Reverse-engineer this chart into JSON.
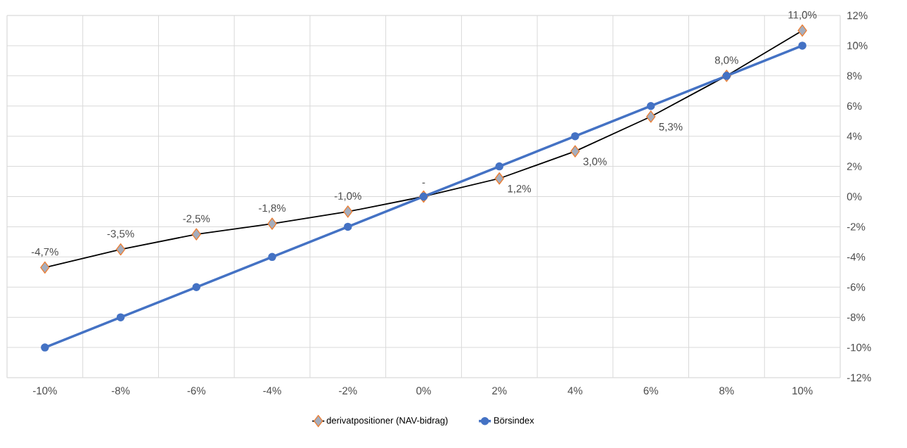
{
  "chart_data": {
    "type": "line",
    "categories": [
      "-10%",
      "-8%",
      "-6%",
      "-4%",
      "-2%",
      "0%",
      "2%",
      "4%",
      "6%",
      "8%",
      "10%"
    ],
    "series": [
      {
        "name": "derivatpositioner (NAV-bidrag)",
        "color": "#000000",
        "marker": "diamond",
        "values": [
          -4.7,
          -3.5,
          -2.5,
          -1.8,
          -1.0,
          0,
          1.2,
          3.0,
          5.3,
          8.0,
          11.0
        ],
        "value_labels": [
          "-4,7%",
          "-3,5%",
          "-2,5%",
          "-1,8%",
          "-1,0%",
          "-",
          "1,2%",
          "3,0%",
          "5,3%",
          "8,0%",
          "11,0%"
        ]
      },
      {
        "name": "Börsindex",
        "color": "#4472c4",
        "marker": "circle",
        "values": [
          -10,
          -8,
          -6,
          -4,
          -2,
          0,
          2,
          4,
          6,
          8,
          10
        ]
      }
    ],
    "ylim": [
      -12,
      12
    ],
    "yticks": [
      {
        "value": -12,
        "label": "-12%"
      },
      {
        "value": -10,
        "label": "-10%"
      },
      {
        "value": -8,
        "label": "-8%"
      },
      {
        "value": -6,
        "label": "-6%"
      },
      {
        "value": -4,
        "label": "-4%"
      },
      {
        "value": -2,
        "label": "-2%"
      },
      {
        "value": 0,
        "label": "0%"
      },
      {
        "value": 2,
        "label": "2%"
      },
      {
        "value": 4,
        "label": "4%"
      },
      {
        "value": 6,
        "label": "6%"
      },
      {
        "value": 8,
        "label": "8%"
      },
      {
        "value": 10,
        "label": "10%"
      },
      {
        "value": 12,
        "label": "12%"
      }
    ],
    "grid": true,
    "legend": "bottom",
    "line_style": "solid"
  }
}
